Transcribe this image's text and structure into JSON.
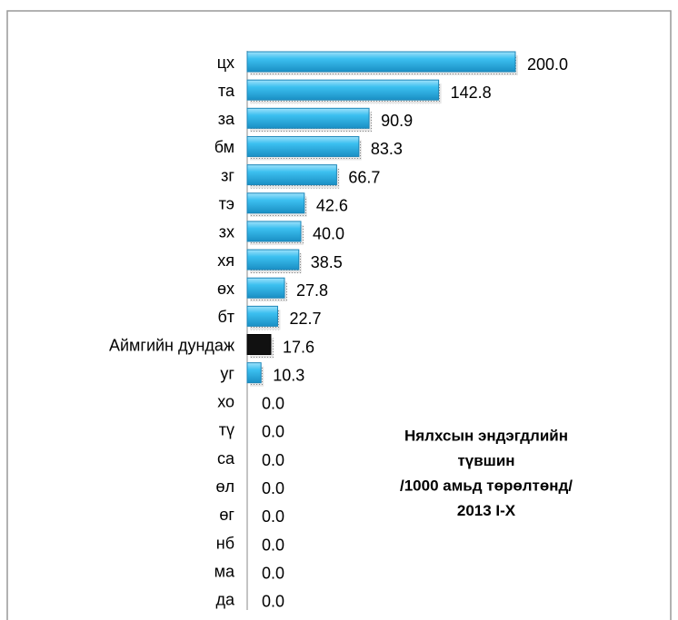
{
  "chart_data": {
    "type": "bar",
    "orientation": "horizontal",
    "title_lines": [
      "Нялхсын  эндэгдлийн",
      "түвшин",
      "/1000 амьд төрөлтөнд/",
      "2013 I-X"
    ],
    "categories": [
      "цх",
      "та",
      "за",
      "бм",
      "зг",
      "тэ",
      "зх",
      "хя",
      "өх",
      "бт",
      "Аймгийн дундаж",
      "уг",
      "хо",
      "тү",
      "са",
      "өл",
      "өг",
      "нб",
      "ма",
      "да"
    ],
    "values": [
      200.0,
      142.8,
      90.9,
      83.3,
      66.7,
      42.6,
      40.0,
      38.5,
      27.8,
      22.7,
      17.6,
      10.3,
      0,
      0,
      0,
      0,
      0,
      0,
      0,
      0
    ],
    "value_labels": [
      "200.0",
      "142.8",
      "90.9",
      "83.3",
      "66.7",
      "42.6",
      "40.0",
      "38.5",
      "27.8",
      "22.7",
      "17.6",
      "10.3",
      "0.0",
      "0.0",
      "0.0",
      "0.0",
      "0.0",
      "0.0",
      "0.0",
      "0.0"
    ],
    "colors": [
      "#2fb8ec",
      "#2fb8ec",
      "#2fb8ec",
      "#2fb8ec",
      "#2fb8ec",
      "#2fb8ec",
      "#2fb8ec",
      "#2fb8ec",
      "#2fb8ec",
      "#2fb8ec",
      "#111111",
      "#2fb8ec",
      "#2fb8ec",
      "#2fb8ec",
      "#2fb8ec",
      "#2fb8ec",
      "#2fb8ec",
      "#2fb8ec",
      "#2fb8ec",
      "#2fb8ec"
    ],
    "xlim": [
      0,
      200
    ]
  }
}
